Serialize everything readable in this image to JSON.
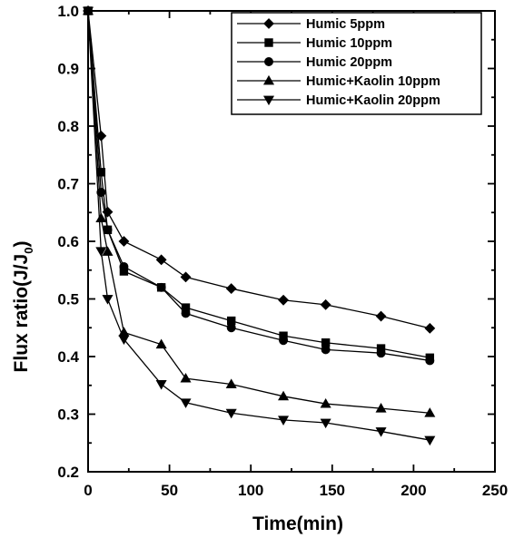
{
  "chart_data": {
    "type": "line",
    "xlabel": "Time(min)",
    "ylabel_main": "Flux ratio(J/J",
    "ylabel_sub": "0",
    "ylabel_close": ")",
    "xlim": [
      0,
      250
    ],
    "ylim": [
      0.2,
      1.0
    ],
    "x_ticks": [
      "0",
      "50",
      "100",
      "150",
      "200",
      "250"
    ],
    "y_ticks": [
      "0.2",
      "0.3",
      "0.4",
      "0.5",
      "0.6",
      "0.7",
      "0.8",
      "0.9",
      "1.0"
    ],
    "legend_position": "top-right",
    "grid": false,
    "series": [
      {
        "name": "Humic 5ppm",
        "marker": "diamond",
        "x": [
          0,
          8,
          12,
          22,
          45,
          60,
          88,
          120,
          146,
          180,
          210
        ],
        "y": [
          1.0,
          0.783,
          0.651,
          0.6,
          0.568,
          0.538,
          0.518,
          0.498,
          0.49,
          0.47,
          0.449
        ]
      },
      {
        "name": "Humic 10ppm",
        "marker": "square",
        "x": [
          0,
          8,
          12,
          22,
          45,
          60,
          88,
          120,
          146,
          180,
          210
        ],
        "y": [
          1.0,
          0.72,
          0.62,
          0.548,
          0.52,
          0.485,
          0.462,
          0.436,
          0.424,
          0.414,
          0.398
        ]
      },
      {
        "name": "Humic 20ppm",
        "marker": "circle",
        "x": [
          0,
          8,
          12,
          22,
          45,
          60,
          88,
          120,
          146,
          180,
          210
        ],
        "y": [
          1.0,
          0.685,
          0.62,
          0.556,
          0.52,
          0.475,
          0.45,
          0.428,
          0.412,
          0.406,
          0.393
        ]
      },
      {
        "name": "Humic+Kaolin 10ppm",
        "marker": "triangle-up",
        "x": [
          0,
          8,
          12,
          22,
          45,
          60,
          88,
          120,
          146,
          180,
          210
        ],
        "y": [
          1.0,
          0.64,
          0.582,
          0.442,
          0.421,
          0.362,
          0.352,
          0.331,
          0.318,
          0.31,
          0.302
        ]
      },
      {
        "name": "Humic+Kaolin 20ppm",
        "marker": "triangle-down",
        "x": [
          0,
          8,
          12,
          22,
          45,
          60,
          88,
          120,
          146,
          180,
          210
        ],
        "y": [
          1.0,
          0.583,
          0.5,
          0.43,
          0.352,
          0.32,
          0.302,
          0.29,
          0.285,
          0.27,
          0.255
        ]
      }
    ]
  }
}
